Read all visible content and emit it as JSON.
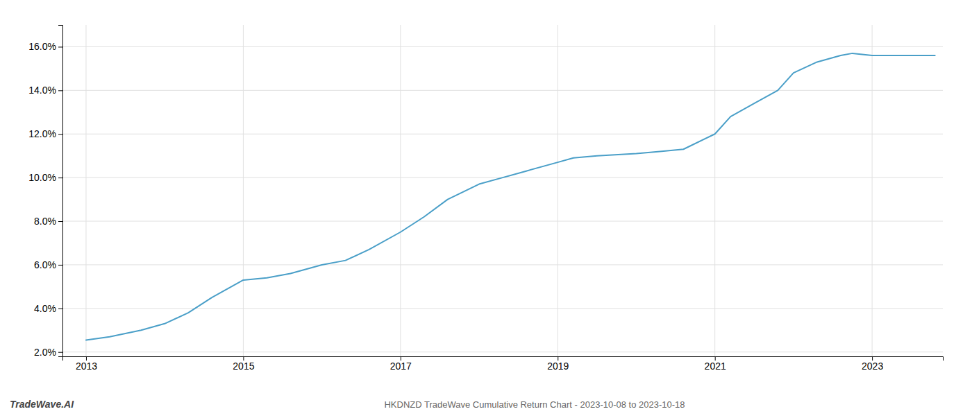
{
  "chart_data": {
    "type": "line",
    "title": "HKDNZD TradeWave Cumulative Return Chart - 2023-10-08 to 2023-10-18",
    "annotations": [
      "TradeWave.AI"
    ],
    "x": [
      2013.0,
      2013.3,
      2013.7,
      2014.0,
      2014.3,
      2014.6,
      2015.0,
      2015.3,
      2015.6,
      2016.0,
      2016.3,
      2016.6,
      2017.0,
      2017.3,
      2017.6,
      2018.0,
      2018.3,
      2018.6,
      2019.0,
      2019.2,
      2019.5,
      2020.0,
      2020.3,
      2020.6,
      2021.0,
      2021.2,
      2021.5,
      2021.8,
      2022.0,
      2022.3,
      2022.6,
      2022.75,
      2023.0,
      2023.8
    ],
    "values": [
      0.0255,
      0.027,
      0.03,
      0.033,
      0.038,
      0.045,
      0.053,
      0.054,
      0.056,
      0.06,
      0.062,
      0.067,
      0.075,
      0.082,
      0.09,
      0.097,
      0.1,
      0.103,
      0.107,
      0.109,
      0.11,
      0.111,
      0.112,
      0.113,
      0.12,
      0.128,
      0.134,
      0.14,
      0.148,
      0.153,
      0.156,
      0.157,
      0.156,
      0.156
    ],
    "color": "#4a9fc8",
    "xlim": [
      2012.7,
      2023.9
    ],
    "xticks": [
      2013,
      2015,
      2017,
      2019,
      2021,
      2023
    ],
    "ylim": [
      0.018,
      0.17
    ],
    "yticks": [
      {
        "value": 0.02,
        "label": "2.0%"
      },
      {
        "value": 0.04,
        "label": "4.0%"
      },
      {
        "value": 0.06,
        "label": "6.0%"
      },
      {
        "value": 0.08,
        "label": "8.0%"
      },
      {
        "value": 0.1,
        "label": "10.0%"
      },
      {
        "value": 0.12,
        "label": "12.0%"
      },
      {
        "value": 0.14,
        "label": "14.0%"
      },
      {
        "value": 0.16,
        "label": "16.0%"
      }
    ],
    "grid": true
  }
}
